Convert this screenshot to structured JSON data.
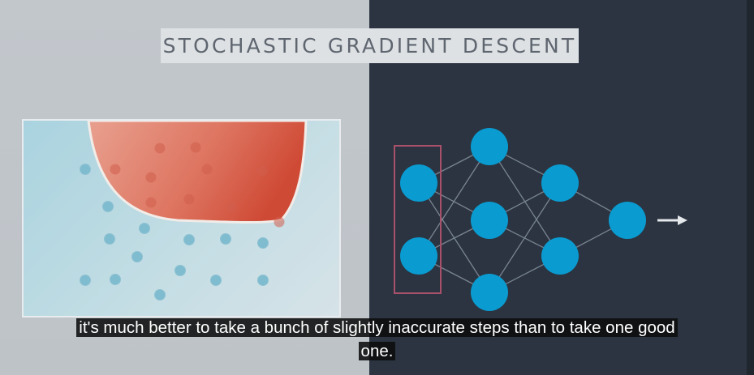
{
  "video": {
    "title": "STOCHASTIC GRADIENT DESCENT",
    "caption_line1": "it's much better to take a bunch of slightly inaccurate steps than to take one good",
    "caption_line2": "one."
  },
  "colors": {
    "left_background": "#c2c7cc",
    "right_background": "#2b3440",
    "title_box": "#dde1e4",
    "title_text": "#5f6670",
    "neuron": "#0a9bd1",
    "edge": "#7a8592",
    "selection_box": "#a9506a",
    "red_region": "#d8634a",
    "blue_point": "#7fbcd0",
    "red_point": "#cf5e4c"
  },
  "icons": {
    "output_arrow": "right-arrow-icon"
  }
}
